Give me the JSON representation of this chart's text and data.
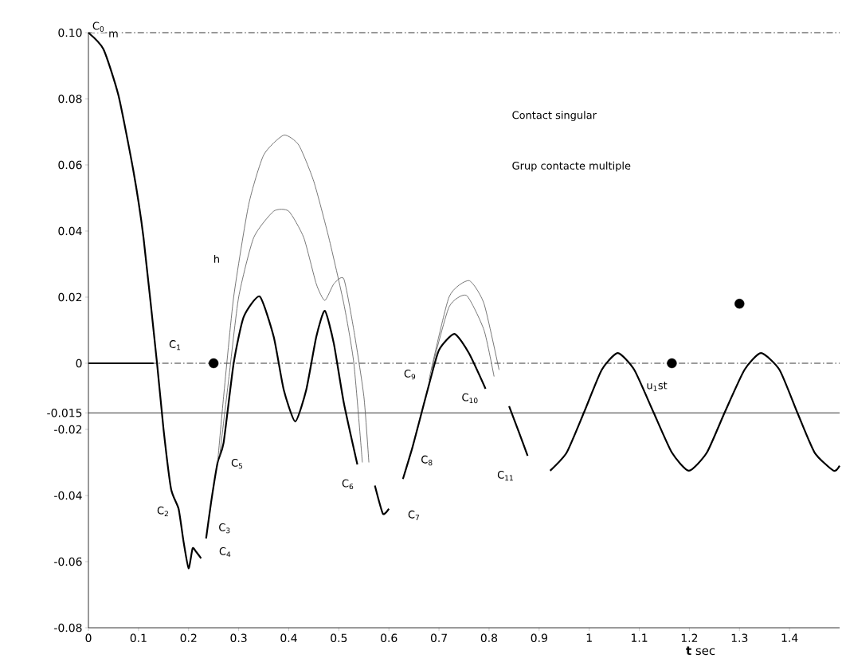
{
  "chart_data": {
    "type": "line",
    "xlabel": "**t** sec",
    "xlim": [
      0,
      1.5
    ],
    "ylim": [
      -0.08,
      0.1
    ],
    "xticks": [
      0,
      0.1,
      0.2,
      0.3,
      0.4,
      0.5,
      0.6,
      0.7,
      0.8,
      0.9,
      1,
      1.1,
      1.2,
      1.3,
      1.4
    ],
    "yticks": [
      {
        "value": 0.1,
        "label": "0.10"
      },
      0.08,
      0.06,
      0.04,
      0.02,
      0,
      -0.015,
      -0.02,
      -0.04,
      -0.06,
      -0.08
    ],
    "grid": false,
    "marker": "none",
    "line_style": "solid",
    "series": [
      {
        "color": "#000000",
        "x": [
          0,
          0.03,
          0.06,
          0.09,
          0.11,
          0.137,
          0.15,
          0.165,
          0.18,
          0.19,
          0.2,
          0.208,
          0.215,
          0.225,
          0.23,
          0.235,
          0.245,
          0.258,
          0.27,
          0.29,
          0.31,
          0.342,
          0.37,
          0.39,
          0.413,
          0.435,
          0.455,
          0.472,
          0.49,
          0.51,
          0.537,
          0.55,
          0.572,
          0.588,
          0.6,
          0.61,
          0.628,
          0.646,
          0.66,
          0.68,
          0.7,
          0.731,
          0.76,
          0.793,
          0.81,
          0.84,
          0.86,
          0.877,
          0.9,
          0.922,
          0.955,
          0.99,
          1.025,
          1.057,
          1.09,
          1.128,
          1.165,
          1.199,
          1.235,
          1.271,
          1.31,
          1.343,
          1.38,
          1.415,
          1.45,
          1.488,
          1.5
        ],
        "values": [
          0.1,
          0.095,
          0.081,
          0.058,
          0.038,
          0.0,
          -0.02,
          -0.038,
          -0.044,
          -0.054,
          -0.062,
          -0.056,
          -0.057,
          -0.059,
          null,
          -0.053,
          -0.042,
          -0.03,
          -0.024,
          0.0,
          0.014,
          0.0202,
          0.008,
          -0.008,
          -0.0176,
          -0.008,
          0.008,
          0.0159,
          0.006,
          -0.012,
          -0.0306,
          null,
          -0.037,
          -0.0455,
          -0.044,
          null,
          -0.035,
          -0.026,
          -0.018,
          -0.0065,
          0.004,
          0.0089,
          0.003,
          -0.0077,
          null,
          -0.013,
          -0.021,
          -0.028,
          null,
          -0.0325,
          -0.027,
          -0.0147,
          -0.002,
          0.0031,
          -0.002,
          -0.0147,
          -0.027,
          -0.0325,
          -0.027,
          -0.0147,
          -0.002,
          0.0031,
          -0.002,
          -0.0147,
          -0.027,
          -0.0325,
          -0.031
        ]
      },
      {
        "color": "#000000",
        "x": [
          0,
          0.13
        ],
        "values": [
          0,
          0
        ]
      },
      {
        "color": "#555555",
        "x": [
          0.258,
          0.27,
          0.29,
          0.32,
          0.35,
          0.39,
          0.42,
          0.45,
          0.48,
          0.51,
          0.53,
          0.547,
          0.6,
          0.68,
          0.72,
          0.76,
          0.79,
          0.82
        ],
        "values": [
          -0.03,
          -0.01,
          0.02,
          0.048,
          0.063,
          0.069,
          0.066,
          0.055,
          0.038,
          0.018,
          0.0,
          -0.03,
          null,
          -0.005,
          0.02,
          0.025,
          0.018,
          -0.002
        ]
      },
      {
        "color": "#555555",
        "x": [
          0.262,
          0.28,
          0.3,
          0.33,
          0.37,
          0.4,
          0.43,
          0.455,
          0.472,
          0.49,
          0.51,
          0.53,
          0.55,
          0.56,
          0.6,
          0.685,
          0.72,
          0.755,
          0.79,
          0.81
        ],
        "values": [
          -0.028,
          -0.005,
          0.02,
          0.038,
          0.046,
          0.046,
          0.038,
          0.024,
          0.019,
          0.024,
          0.0255,
          0.01,
          -0.01,
          -0.03,
          null,
          -0.002,
          0.017,
          0.0205,
          0.01,
          -0.004
        ]
      },
      {
        "type": "scatter",
        "marker": "circle",
        "color": "#000000",
        "x": [
          0.25,
          1.165,
          1.3
        ],
        "values": [
          0,
          0,
          0.018
        ]
      }
    ],
    "ref_lines": [
      {
        "axis": "y",
        "value": 0,
        "line_style": "dashed",
        "color": "#000000"
      },
      {
        "axis": "y",
        "value": -0.015,
        "line_style": "solid",
        "color": "#000000"
      },
      {
        "axis": "y",
        "value": 0.1,
        "line_style": "dashed",
        "color": "#000000"
      }
    ],
    "annotations": [
      "Contact singular",
      "Grup contacte multiple",
      {
        "text": "C$_{0}$",
        "x": 0.02,
        "y": 0.1
      },
      {
        "text": "m",
        "x": 0.05,
        "y": 0.0995
      },
      {
        "text": "h",
        "x": 0.256,
        "y": 0.0316
      },
      {
        "text": "C$_{1}$",
        "x": 0.173,
        "y": 0.0055
      },
      {
        "text": "C$_{2}$",
        "x": 0.149,
        "y": -0.0448
      },
      {
        "text": "C$_{3}$",
        "x": 0.272,
        "y": -0.0499
      },
      {
        "text": "C$_{4}$",
        "x": 0.273,
        "y": -0.0571
      },
      {
        "text": "C$_{5}$",
        "x": 0.297,
        "y": -0.0304
      },
      {
        "text": "C$_{6}$",
        "x": 0.518,
        "y": -0.0366
      },
      {
        "text": "C$_{7}$",
        "x": 0.65,
        "y": -0.046
      },
      {
        "text": "C$_{8}$",
        "x": 0.676,
        "y": -0.0294
      },
      {
        "text": "C$_{9}$",
        "x": 0.642,
        "y": -0.0034
      },
      {
        "text": "C$_{10}$",
        "x": 0.762,
        "y": -0.0106
      },
      {
        "text": "C$_{11}$",
        "x": 0.833,
        "y": -0.034
      },
      {
        "text": "u$_{1}$st",
        "x": 1.135,
        "y": -0.007
      }
    ]
  }
}
